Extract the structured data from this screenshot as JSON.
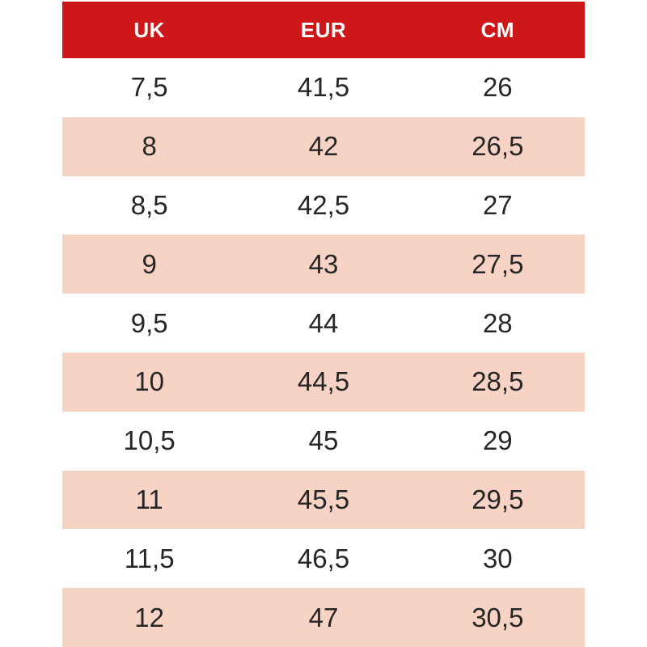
{
  "table": {
    "headers": {
      "uk": "UK",
      "eur": "EUR",
      "cm": "CM"
    },
    "rows": [
      {
        "uk": "7,5",
        "eur": "41,5",
        "cm": "26"
      },
      {
        "uk": "8",
        "eur": "42",
        "cm": "26,5"
      },
      {
        "uk": "8,5",
        "eur": "42,5",
        "cm": "27"
      },
      {
        "uk": "9",
        "eur": "43",
        "cm": "27,5"
      },
      {
        "uk": "9,5",
        "eur": "44",
        "cm": "28"
      },
      {
        "uk": "10",
        "eur": "44,5",
        "cm": "28,5"
      },
      {
        "uk": "10,5",
        "eur": "45",
        "cm": "29"
      },
      {
        "uk": "11",
        "eur": "45,5",
        "cm": "29,5"
      },
      {
        "uk": "11,5",
        "eur": "46,5",
        "cm": "30"
      },
      {
        "uk": "12",
        "eur": "47",
        "cm": "30,5"
      }
    ]
  },
  "colors": {
    "header_bg": "#CD1719",
    "row_alt_bg": "#F6D3C4",
    "row_bg": "#FFFFFF",
    "header_text": "#FFFFFF",
    "cell_text": "#262626"
  }
}
